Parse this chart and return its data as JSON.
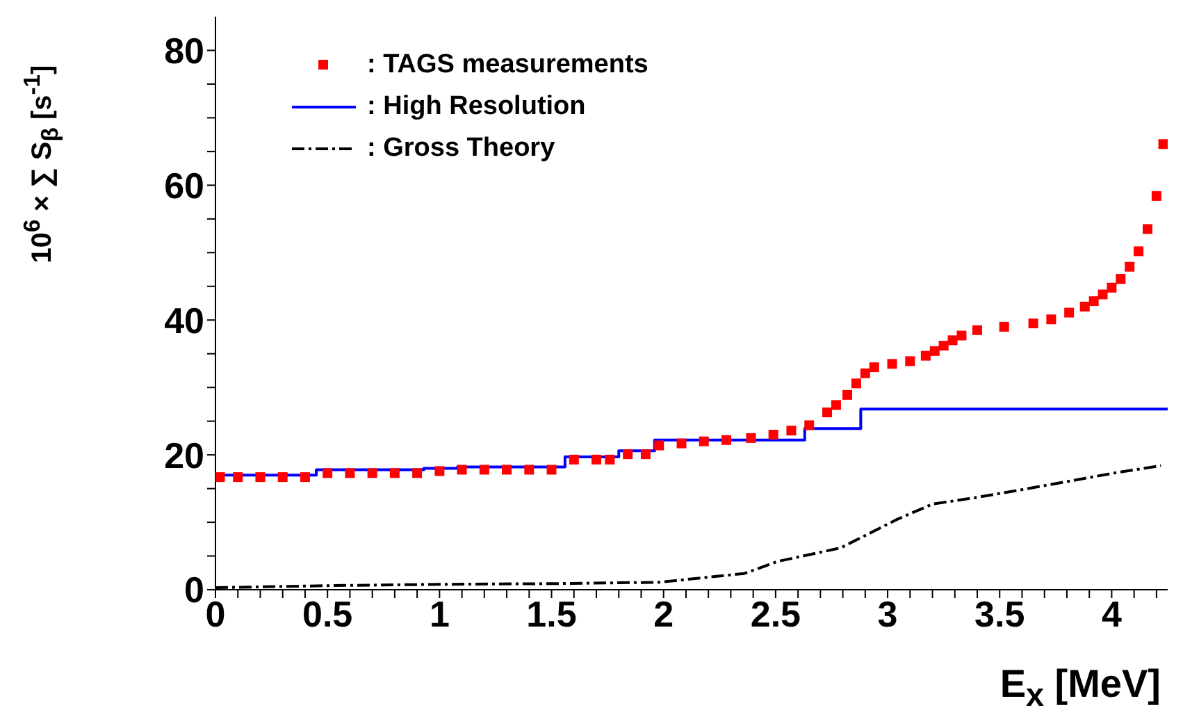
{
  "chart_data": {
    "type": "line",
    "xlabel": "E$_{x}$ [MeV]",
    "ylabel": "10$^{6}$ × ∑ S$_{β}$ [s$^{-1}$]",
    "xlim": [
      0,
      4.25
    ],
    "ylim": [
      0,
      85
    ],
    "xticks": [
      0,
      {
        "value": 0.1,
        "label": null
      },
      {
        "value": 0.2,
        "label": null
      },
      {
        "value": 0.3,
        "label": null
      },
      {
        "value": 0.4,
        "label": null
      },
      0.5,
      {
        "value": 0.6,
        "label": null
      },
      {
        "value": 0.7,
        "label": null
      },
      {
        "value": 0.8,
        "label": null
      },
      {
        "value": 0.9,
        "label": null
      },
      1,
      {
        "value": 1.1,
        "label": null
      },
      {
        "value": 1.2,
        "label": null
      },
      {
        "value": 1.3,
        "label": null
      },
      {
        "value": 1.4,
        "label": null
      },
      1.5,
      {
        "value": 1.6,
        "label": null
      },
      {
        "value": 1.7,
        "label": null
      },
      {
        "value": 1.8,
        "label": null
      },
      {
        "value": 1.9,
        "label": null
      },
      2,
      {
        "value": 2.1,
        "label": null
      },
      {
        "value": 2.2,
        "label": null
      },
      {
        "value": 2.3,
        "label": null
      },
      {
        "value": 2.4,
        "label": null
      },
      2.5,
      {
        "value": 2.6,
        "label": null
      },
      {
        "value": 2.7,
        "label": null
      },
      {
        "value": 2.8,
        "label": null
      },
      {
        "value": 2.9,
        "label": null
      },
      3,
      {
        "value": 3.1,
        "label": null
      },
      {
        "value": 3.2,
        "label": null
      },
      {
        "value": 3.3,
        "label": null
      },
      {
        "value": 3.4,
        "label": null
      },
      3.5,
      {
        "value": 3.6,
        "label": null
      },
      {
        "value": 3.7,
        "label": null
      },
      {
        "value": 3.8,
        "label": null
      },
      {
        "value": 3.9,
        "label": null
      },
      4,
      {
        "value": 4.1,
        "label": null
      },
      {
        "value": 4.2,
        "label": null
      }
    ],
    "yticks": [
      0,
      {
        "value": 5,
        "label": null
      },
      {
        "value": 10,
        "label": null
      },
      {
        "value": 15,
        "label": null
      },
      20,
      {
        "value": 25,
        "label": null
      },
      {
        "value": 30,
        "label": null
      },
      {
        "value": 35,
        "label": null
      },
      40,
      {
        "value": 45,
        "label": null
      },
      {
        "value": 50,
        "label": null
      },
      {
        "value": 55,
        "label": null
      },
      60,
      {
        "value": 65,
        "label": null
      },
      {
        "value": 70,
        "label": null
      },
      {
        "value": 75,
        "label": null
      },
      80
    ],
    "grid": false,
    "legend": "top left",
    "series": [
      {
        "name": ": TAGS measurements",
        "type": "scatter",
        "marker": "square",
        "color": "#ff0000",
        "x": [
          0.02,
          0.1,
          0.2,
          0.3,
          0.4,
          0.5,
          0.6,
          0.7,
          0.8,
          0.9,
          1.0,
          1.1,
          1.2,
          1.3,
          1.4,
          1.5,
          1.6,
          1.7,
          1.76,
          1.84,
          1.92,
          1.98,
          2.08,
          2.18,
          2.28,
          2.39,
          2.49,
          2.57,
          2.65,
          2.73,
          2.77,
          2.82,
          2.86,
          2.9,
          2.94,
          3.02,
          3.1,
          3.17,
          3.21,
          3.25,
          3.29,
          3.33,
          3.4,
          3.52,
          3.65,
          3.73,
          3.81,
          3.88,
          3.92,
          3.96,
          4.0,
          4.04,
          4.08,
          4.12,
          4.16,
          4.2,
          4.23
        ],
        "values": [
          16.7,
          16.7,
          16.7,
          16.7,
          16.7,
          17.3,
          17.3,
          17.3,
          17.3,
          17.3,
          17.6,
          17.8,
          17.8,
          17.8,
          17.8,
          17.8,
          19.3,
          19.3,
          19.3,
          20.1,
          20.1,
          21.4,
          21.7,
          22.0,
          22.2,
          22.5,
          23.0,
          23.6,
          24.4,
          26.3,
          27.4,
          28.9,
          30.6,
          32.1,
          33.0,
          33.5,
          33.9,
          34.7,
          35.4,
          36.2,
          37.0,
          37.7,
          38.5,
          39.0,
          39.5,
          40.1,
          41.1,
          42.0,
          42.8,
          43.8,
          44.8,
          46.1,
          47.9,
          50.2,
          53.5,
          58.4,
          66.1
        ]
      },
      {
        "name": ": High Resolution",
        "type": "step",
        "color": "#0000ff",
        "x": [
          0,
          0.45,
          0.93,
          1.08,
          1.56,
          1.8,
          1.96,
          2.63,
          2.88,
          4.25
        ],
        "values": [
          17.0,
          17.8,
          18.0,
          18.2,
          19.7,
          20.6,
          22.2,
          23.9,
          26.8,
          26.8
        ]
      },
      {
        "name": ": Gross Theory",
        "color": "#000000",
        "line_style": "dashed",
        "marker": "none",
        "x": [
          0,
          0.5,
          1,
          1.5,
          1.98,
          2.36,
          2.51,
          2.79,
          2.88,
          3.04,
          3.2,
          3.4,
          3.61,
          3.81,
          4.01,
          4.22
        ],
        "values": [
          0.3,
          0.6,
          0.8,
          0.9,
          1.1,
          2.4,
          4.2,
          6.2,
          7.7,
          10.4,
          12.7,
          13.7,
          14.9,
          16.1,
          17.3,
          18.4
        ]
      }
    ]
  }
}
